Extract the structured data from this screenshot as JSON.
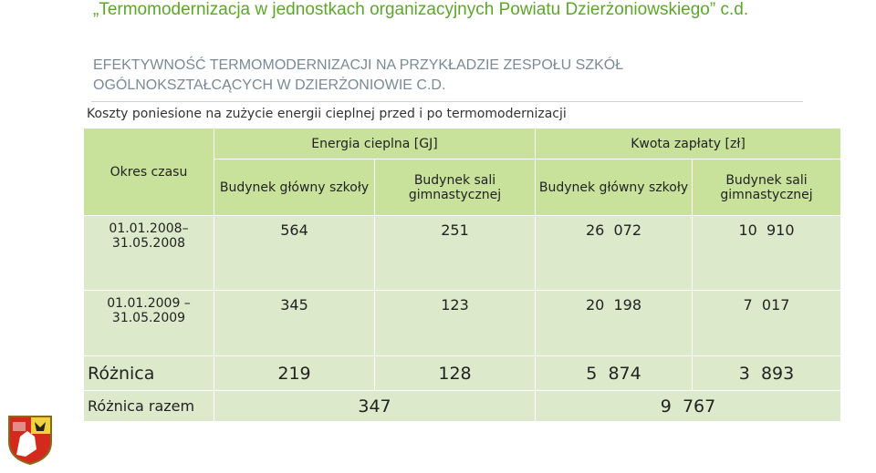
{
  "header": {
    "title": "„Termomodernizacja w jednostkach organizacyjnych Powiatu Dzierżoniowskiego” c.d.",
    "subtitle": "EFEKTYWNOŚĆ TERMOMODERNIZACJI NA PRZYKŁADZIE  ZESPOŁU SZKÓŁ OGÓLNOKSZTAŁCĄCYCH W DZIERŻONIOWIE C.D.",
    "caption": "Koszty poniesione na zużycie energii cieplnej przed i po termomodernizacji"
  },
  "table": {
    "period_header": "Okres czasu",
    "energy_header": "Energia cieplna [GJ]",
    "cost_header": "Kwota zapłaty [zł]",
    "sub_headers": [
      "Budynek główny szkoły",
      "Budynek sali gimnastycznej",
      "Budynek główny szkoły",
      "Budynek sali gimnastycznej"
    ],
    "rows": [
      {
        "period": "01.01.2008– 31.05.2008",
        "values": [
          "564",
          "251",
          "26  072",
          "10  910"
        ]
      },
      {
        "period": "01.01.2009 – 31.05.2009",
        "values": [
          "345",
          "123",
          "20  198",
          "7  017"
        ]
      }
    ],
    "difference": {
      "label": "Różnica",
      "values": [
        "219",
        "128",
        "5  874",
        "3  893"
      ]
    },
    "total_difference": {
      "label": "Różnica razem",
      "energy": "347",
      "cost": "9  767"
    }
  },
  "colors": {
    "title_green": "#5ba829",
    "header_green": "#c9e29b",
    "cell_green": "#dde9cb"
  },
  "logo": {
    "icon": "coat-of-arms-icon"
  }
}
